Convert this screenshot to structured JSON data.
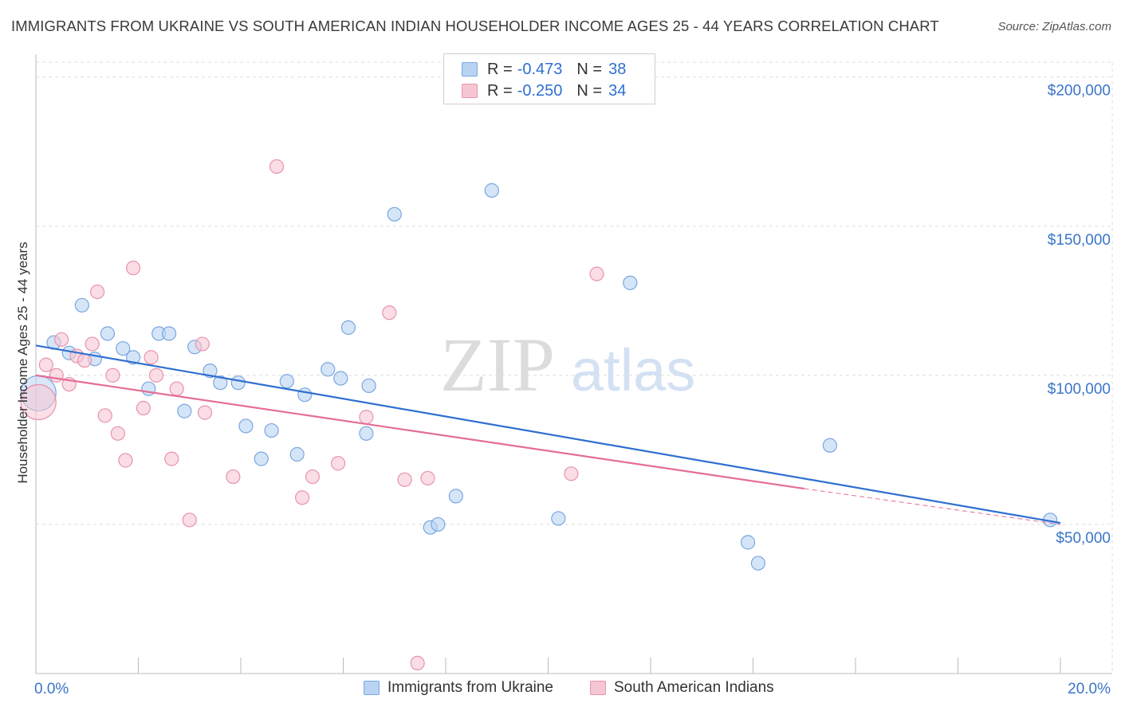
{
  "header": {
    "title": "IMMIGRANTS FROM UKRAINE VS SOUTH AMERICAN INDIAN HOUSEHOLDER INCOME AGES 25 - 44 YEARS CORRELATION CHART",
    "source": "Source: ZipAtlas.com"
  },
  "legend_top": {
    "rows": [
      {
        "r_label": "R =",
        "r_value": "-0.473",
        "n_label": "N =",
        "n_value": "38"
      },
      {
        "r_label": "R =",
        "r_value": "-0.250",
        "n_label": "N =",
        "n_value": "34"
      }
    ]
  },
  "legend_bottom": {
    "items": [
      "Immigrants from Ukraine",
      "South American Indians"
    ]
  },
  "watermark": {
    "zip": "ZIP",
    "atlas": "atlas"
  },
  "colors": {
    "blue_fill": "#b9d3f3",
    "blue_stroke": "#7aa6df",
    "blue_line": "#2f6fd0",
    "pink_fill": "#f7c6d3",
    "pink_stroke": "#e893ac",
    "pink_line": "#e56d95",
    "axis_label": "#3a75c8",
    "grid": "#dddddd"
  },
  "chart_data": {
    "type": "scatter",
    "title": "IMMIGRANTS FROM UKRAINE VS SOUTH AMERICAN INDIAN HOUSEHOLDER INCOME AGES 25 - 44 YEARS CORRELATION CHART",
    "xlabel": "",
    "ylabel": "Householder Income Ages 25 - 44 years",
    "xlim": [
      0,
      20
    ],
    "ylim": [
      0,
      205000
    ],
    "x_tick_labels": [
      {
        "value": 0,
        "label": "0.0%"
      },
      {
        "value": 20,
        "label": "20.0%"
      }
    ],
    "y_ticks": [
      {
        "value": 50000,
        "label": "$50,000"
      },
      {
        "value": 100000,
        "label": "$100,000"
      },
      {
        "value": 150000,
        "label": "$150,000"
      },
      {
        "value": 200000,
        "label": "$200,000"
      }
    ],
    "grid": true,
    "legend_position": "top-center",
    "series": [
      {
        "name": "Immigrants from Ukraine",
        "r": -0.473,
        "n": 38,
        "trend": {
          "x": [
            0,
            20
          ],
          "y": [
            110000,
            50500
          ]
        },
        "points": [
          {
            "x": 0.05,
            "y": 94000,
            "big": true
          },
          {
            "x": 0.35,
            "y": 111000
          },
          {
            "x": 0.65,
            "y": 107500
          },
          {
            "x": 0.9,
            "y": 123500
          },
          {
            "x": 1.15,
            "y": 105500
          },
          {
            "x": 1.4,
            "y": 114000
          },
          {
            "x": 1.7,
            "y": 109000
          },
          {
            "x": 1.9,
            "y": 106000
          },
          {
            "x": 2.2,
            "y": 95500
          },
          {
            "x": 2.4,
            "y": 114000
          },
          {
            "x": 2.6,
            "y": 114000
          },
          {
            "x": 2.9,
            "y": 88000
          },
          {
            "x": 3.1,
            "y": 109500
          },
          {
            "x": 3.4,
            "y": 101500
          },
          {
            "x": 3.6,
            "y": 97500
          },
          {
            "x": 3.95,
            "y": 97500
          },
          {
            "x": 4.1,
            "y": 83000
          },
          {
            "x": 4.4,
            "y": 72000
          },
          {
            "x": 4.6,
            "y": 81500
          },
          {
            "x": 4.9,
            "y": 98000
          },
          {
            "x": 5.1,
            "y": 73500
          },
          {
            "x": 5.25,
            "y": 93500
          },
          {
            "x": 5.7,
            "y": 102000
          },
          {
            "x": 5.95,
            "y": 99000
          },
          {
            "x": 6.1,
            "y": 116000
          },
          {
            "x": 6.45,
            "y": 80500
          },
          {
            "x": 6.5,
            "y": 96500
          },
          {
            "x": 7.0,
            "y": 154000
          },
          {
            "x": 7.7,
            "y": 49000
          },
          {
            "x": 7.85,
            "y": 50000
          },
          {
            "x": 8.2,
            "y": 59500
          },
          {
            "x": 8.9,
            "y": 162000
          },
          {
            "x": 10.2,
            "y": 52000
          },
          {
            "x": 11.6,
            "y": 131000
          },
          {
            "x": 13.9,
            "y": 44000
          },
          {
            "x": 14.1,
            "y": 37000
          },
          {
            "x": 15.5,
            "y": 76500
          },
          {
            "x": 19.8,
            "y": 51500
          }
        ]
      },
      {
        "name": "South American Indians",
        "r": -0.25,
        "n": 34,
        "trend": {
          "x": [
            0,
            15
          ],
          "y": [
            100000,
            62000
          ]
        },
        "trend_dashed": {
          "x": [
            15,
            20
          ],
          "y": [
            62000,
            50000
          ]
        },
        "points": [
          {
            "x": 0.05,
            "y": 91000,
            "big": true
          },
          {
            "x": 0.2,
            "y": 103500
          },
          {
            "x": 0.4,
            "y": 100000
          },
          {
            "x": 0.5,
            "y": 112000
          },
          {
            "x": 0.65,
            "y": 97000
          },
          {
            "x": 0.8,
            "y": 106500
          },
          {
            "x": 0.95,
            "y": 105000
          },
          {
            "x": 1.1,
            "y": 110500
          },
          {
            "x": 1.2,
            "y": 128000
          },
          {
            "x": 1.35,
            "y": 86500
          },
          {
            "x": 1.5,
            "y": 100000
          },
          {
            "x": 1.6,
            "y": 80500
          },
          {
            "x": 1.75,
            "y": 71500
          },
          {
            "x": 1.9,
            "y": 136000
          },
          {
            "x": 2.1,
            "y": 89000
          },
          {
            "x": 2.25,
            "y": 106000
          },
          {
            "x": 2.35,
            "y": 100000
          },
          {
            "x": 2.65,
            "y": 72000
          },
          {
            "x": 2.75,
            "y": 95500
          },
          {
            "x": 3.0,
            "y": 51500
          },
          {
            "x": 3.3,
            "y": 87500
          },
          {
            "x": 3.25,
            "y": 110500
          },
          {
            "x": 3.85,
            "y": 66000
          },
          {
            "x": 4.7,
            "y": 170000
          },
          {
            "x": 5.2,
            "y": 59000
          },
          {
            "x": 5.4,
            "y": 66000
          },
          {
            "x": 5.9,
            "y": 70500
          },
          {
            "x": 6.45,
            "y": 86000
          },
          {
            "x": 6.9,
            "y": 121000
          },
          {
            "x": 7.2,
            "y": 65000
          },
          {
            "x": 7.45,
            "y": 3500
          },
          {
            "x": 7.65,
            "y": 65500
          },
          {
            "x": 10.45,
            "y": 67000
          },
          {
            "x": 10.95,
            "y": 134000
          }
        ]
      }
    ]
  }
}
